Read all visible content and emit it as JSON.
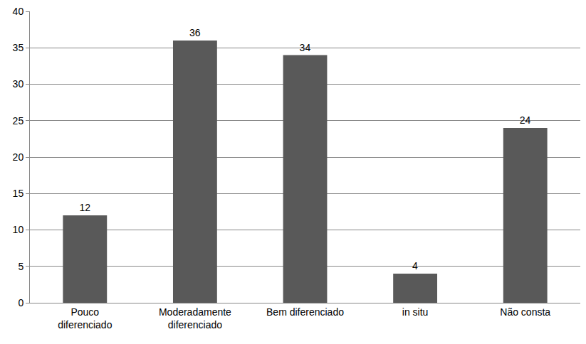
{
  "chart_data": {
    "type": "bar",
    "categories": [
      "Pouco diferenciado",
      "Moderadamente diferenciado",
      "Bem diferenciado",
      "in situ",
      "Não consta"
    ],
    "values": [
      12,
      36,
      34,
      4,
      24
    ],
    "color": "#595959",
    "ylim": [
      0,
      40
    ],
    "yticks": [
      0,
      5,
      10,
      15,
      20,
      25,
      30,
      35,
      40
    ],
    "grid": true,
    "data_labels": true
  }
}
